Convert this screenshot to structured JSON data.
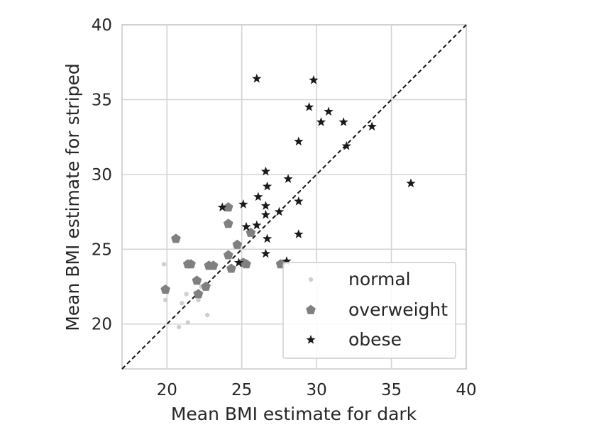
{
  "chart_data": {
    "type": "scatter",
    "title": "",
    "xlabel": "Mean BMI estimate for dark",
    "ylabel": "Mean BMI estimate for striped",
    "xlim": [
      17,
      40
    ],
    "ylim": [
      17,
      40
    ],
    "xticks": [
      20,
      25,
      30,
      35,
      40
    ],
    "yticks": [
      20,
      25,
      30,
      35,
      40
    ],
    "xtick_labels": [
      "20",
      "25",
      "30",
      "35",
      "40"
    ],
    "ytick_labels": [
      "20",
      "25",
      "30",
      "35",
      "40"
    ],
    "grid": true,
    "reference_line": {
      "style": "dashed",
      "from": [
        17,
        17
      ],
      "to": [
        40,
        40
      ],
      "color": "#111111"
    },
    "legend": {
      "position": "bottom-right"
    },
    "series": [
      {
        "name": "normal",
        "marker": "circle",
        "color": "#cfcfcf",
        "points": [
          [
            19.8,
            24.0
          ],
          [
            19.9,
            21.6
          ],
          [
            20.8,
            19.8
          ],
          [
            21.0,
            21.4
          ],
          [
            21.4,
            20.1
          ],
          [
            21.3,
            22.0
          ],
          [
            21.9,
            22.1
          ],
          [
            22.1,
            21.6
          ],
          [
            22.7,
            20.6
          ],
          [
            22.3,
            22.5
          ]
        ]
      },
      {
        "name": "overweight",
        "marker": "pentagon",
        "color": "#808080",
        "points": [
          [
            19.9,
            22.3
          ],
          [
            20.6,
            25.7
          ],
          [
            21.4,
            24.0
          ],
          [
            21.6,
            24.0
          ],
          [
            22.0,
            22.9
          ],
          [
            22.1,
            22.0
          ],
          [
            22.6,
            22.5
          ],
          [
            22.8,
            23.9
          ],
          [
            23.1,
            23.9
          ],
          [
            24.1,
            27.8
          ],
          [
            24.1,
            26.7
          ],
          [
            24.1,
            24.6
          ],
          [
            24.3,
            23.7
          ],
          [
            24.7,
            25.3
          ],
          [
            25.1,
            24.1
          ],
          [
            25.3,
            24.0
          ],
          [
            25.6,
            26.1
          ],
          [
            27.6,
            24.0
          ]
        ]
      },
      {
        "name": "obese",
        "marker": "star",
        "color": "#1a1a1a",
        "points": [
          [
            26.0,
            36.4
          ],
          [
            29.8,
            36.3
          ],
          [
            29.5,
            34.5
          ],
          [
            30.8,
            34.2
          ],
          [
            30.3,
            33.5
          ],
          [
            31.8,
            33.5
          ],
          [
            33.7,
            33.2
          ],
          [
            28.8,
            32.2
          ],
          [
            32.0,
            31.9
          ],
          [
            26.6,
            30.2
          ],
          [
            28.1,
            29.7
          ],
          [
            26.7,
            29.2
          ],
          [
            36.3,
            29.4
          ],
          [
            23.7,
            27.8
          ],
          [
            25.1,
            28.0
          ],
          [
            26.1,
            28.5
          ],
          [
            26.6,
            27.9
          ],
          [
            26.6,
            27.3
          ],
          [
            27.5,
            27.5
          ],
          [
            28.8,
            28.2
          ],
          [
            25.3,
            26.5
          ],
          [
            26.0,
            26.6
          ],
          [
            26.7,
            25.7
          ],
          [
            28.8,
            26.0
          ],
          [
            26.6,
            24.7
          ],
          [
            24.8,
            24.1
          ],
          [
            28.0,
            24.2
          ]
        ]
      }
    ]
  }
}
